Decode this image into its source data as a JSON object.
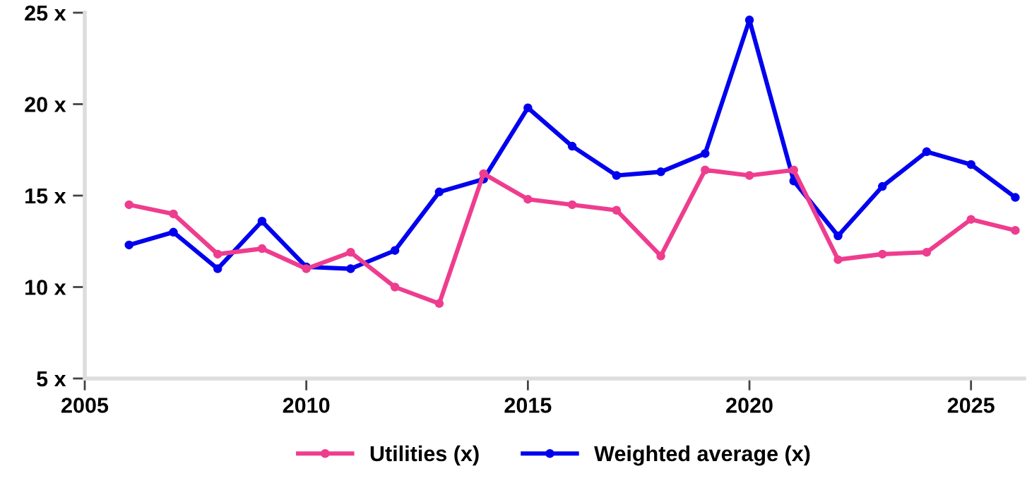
{
  "chart_data": {
    "type": "line",
    "x": [
      2006,
      2007,
      2008,
      2009,
      2010,
      2011,
      2012,
      2013,
      2014,
      2015,
      2016,
      2017,
      2018,
      2019,
      2020,
      2021,
      2022,
      2023,
      2024,
      2025,
      2026
    ],
    "series": [
      {
        "name": "Utilities (x)",
        "color": "#ee3d8f",
        "values": [
          14.5,
          14.0,
          11.8,
          12.1,
          11.0,
          11.9,
          10.0,
          9.1,
          16.2,
          14.8,
          14.5,
          14.2,
          11.7,
          16.4,
          16.1,
          16.4,
          11.5,
          11.8,
          11.9,
          13.7,
          13.1
        ]
      },
      {
        "name": "Weighted average (x)",
        "color": "#0000ee",
        "values": [
          12.3,
          13.0,
          11.0,
          13.6,
          11.1,
          11.0,
          12.0,
          15.2,
          15.9,
          19.8,
          17.7,
          16.1,
          16.3,
          17.3,
          24.6,
          15.8,
          12.8,
          15.5,
          17.4,
          16.7,
          14.9
        ]
      }
    ],
    "xlim": [
      2005,
      2026.2
    ],
    "xticks": [
      2005,
      2010,
      2015,
      2020,
      2025
    ],
    "ylim": [
      5,
      25
    ],
    "yticks": [
      {
        "value": 5,
        "label": "5 x"
      },
      {
        "value": 10,
        "label": "10 x"
      },
      {
        "value": 15,
        "label": "15 x"
      },
      {
        "value": 20,
        "label": "20 x"
      },
      {
        "value": 25,
        "label": "25 x"
      }
    ],
    "marker": "circle",
    "line_style": "solid",
    "grid": false,
    "legend": "bottom"
  }
}
